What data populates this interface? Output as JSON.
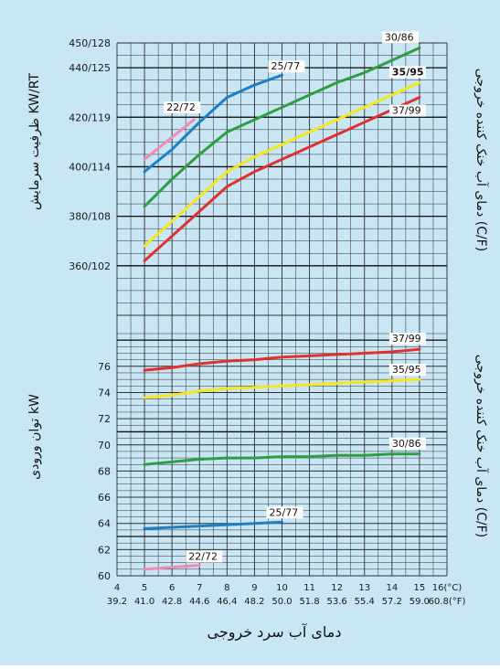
{
  "chart_data": [
    {
      "type": "line",
      "ylabel": "ظرفیت سرمایش KW/RT",
      "right_label": "دمای آب خنک کننده خروجی (C/F)",
      "x": [
        5,
        6,
        7,
        8,
        9,
        10,
        11,
        12,
        13,
        14,
        15
      ],
      "xlim": [
        4,
        16
      ],
      "x_tick_labels_c": [
        "4",
        "5",
        "6",
        "7",
        "8",
        "9",
        "10",
        "11",
        "12",
        "13",
        "14",
        "15",
        "16(°C)"
      ],
      "x_tick_labels_f": [
        "39.2",
        "41.0",
        "42.8",
        "44.6",
        "46.4",
        "48.2",
        "50.0",
        "51.8",
        "53.6",
        "55.4",
        "57.2",
        "59.0",
        "60.8(°F)"
      ],
      "y_tick_labels": [
        "360/102",
        "380/108",
        "400/114",
        "420/119",
        "440/125",
        "450/128"
      ],
      "y_tick_values": [
        360,
        380,
        400,
        420,
        440,
        450
      ],
      "ylim": [
        340,
        450
      ],
      "series": [
        {
          "name": "22/72",
          "color": "#f08cb4",
          "x": [
            5,
            6.8
          ],
          "y": [
            403,
            419
          ]
        },
        {
          "name": "25/77",
          "color": "#1f7fc4",
          "x": [
            5,
            6,
            7,
            8,
            9,
            10
          ],
          "y": [
            398,
            407,
            418,
            428,
            433,
            437
          ]
        },
        {
          "name": "30/86",
          "color": "#2e9e44",
          "x": [
            5,
            6,
            7,
            8,
            9,
            10,
            11,
            12,
            13,
            14,
            15
          ],
          "y": [
            384,
            395,
            405,
            414,
            419,
            424,
            429,
            434,
            438,
            443,
            448
          ]
        },
        {
          "name": "35/95",
          "color": "#f5e61e",
          "x": [
            5,
            6,
            7,
            8,
            9,
            10,
            11,
            12,
            13,
            14,
            15
          ],
          "y": [
            368,
            378,
            388,
            398,
            404,
            409,
            414,
            419,
            424,
            429,
            434
          ]
        },
        {
          "name": "37/99",
          "color": "#e03030",
          "x": [
            5,
            6,
            7,
            8,
            9,
            10,
            11,
            12,
            13,
            14,
            15
          ],
          "y": [
            362,
            372,
            382,
            392,
            398,
            403,
            408,
            413,
            418,
            423,
            428
          ]
        }
      ],
      "grid": true
    },
    {
      "type": "line",
      "ylabel": "توان ورودی kW",
      "right_label": "دمای آب خنک کننده خروجی (C/F)",
      "x": [
        5,
        6,
        7,
        8,
        9,
        10,
        11,
        12,
        13,
        14,
        15
      ],
      "xlim": [
        4,
        16
      ],
      "y_tick_labels": [
        "60",
        "62",
        "64",
        "66",
        "68",
        "70",
        "72",
        "74",
        "76"
      ],
      "y_tick_values": [
        60,
        62,
        64,
        66,
        68,
        70,
        72,
        74,
        76
      ],
      "ylim": [
        60,
        78.5
      ],
      "series": [
        {
          "name": "22/72",
          "color": "#f08cb4",
          "x": [
            5,
            7
          ],
          "y": [
            60.5,
            60.8
          ]
        },
        {
          "name": "25/77",
          "color": "#1f7fc4",
          "x": [
            5,
            6,
            7,
            8,
            9,
            10
          ],
          "y": [
            63.6,
            63.7,
            63.8,
            63.9,
            64.0,
            64.1
          ]
        },
        {
          "name": "30/86",
          "color": "#2e9e44",
          "x": [
            5,
            6,
            7,
            8,
            9,
            10,
            11,
            12,
            13,
            14,
            15
          ],
          "y": [
            68.5,
            68.7,
            68.9,
            69.0,
            69.0,
            69.1,
            69.1,
            69.2,
            69.2,
            69.3,
            69.3
          ]
        },
        {
          "name": "35/95",
          "color": "#f5e61e",
          "x": [
            5,
            6,
            7,
            8,
            9,
            10,
            11,
            12,
            13,
            14,
            15
          ],
          "y": [
            73.6,
            73.8,
            74.1,
            74.3,
            74.4,
            74.5,
            74.6,
            74.7,
            74.8,
            74.9,
            75.0
          ]
        },
        {
          "name": "37/99",
          "color": "#e03030",
          "x": [
            5,
            6,
            7,
            8,
            9,
            10,
            11,
            12,
            13,
            14,
            15
          ],
          "y": [
            75.7,
            75.9,
            76.2,
            76.4,
            76.5,
            76.7,
            76.8,
            76.9,
            77.0,
            77.1,
            77.3
          ]
        }
      ],
      "grid": true
    }
  ],
  "xlabel": "دمای آب سرد خروجی"
}
